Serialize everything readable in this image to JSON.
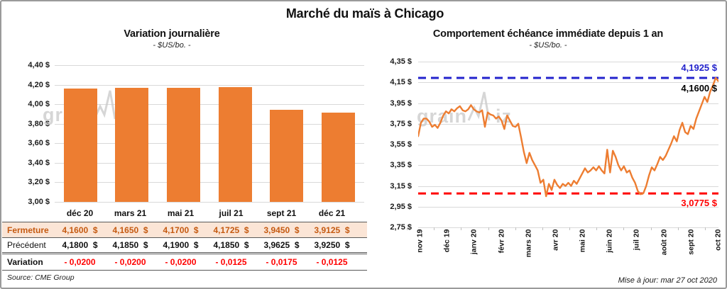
{
  "header": {
    "title": "Marché du maïs à Chicago"
  },
  "footer": {
    "source": "Source: CME Group",
    "updated": "Mise à jour: mar 27 oct 2020"
  },
  "watermark": {
    "part1": "grain",
    "part2": "iz"
  },
  "colors": {
    "bar": "#ED7D31",
    "line": "#ED7D31",
    "grid": "#D9D9D9",
    "ref_high": "#2222CC",
    "ref_low": "#FF0000",
    "fermeture_bg": "#FBE5D6",
    "fermeture_text": "#C55A11",
    "variation_text": "#FF0000"
  },
  "table": {
    "columns": [
      "déc 20",
      "mars 21",
      "mai 21",
      "juil 21",
      "sept 21",
      "déc 21"
    ],
    "rows": [
      {
        "label": "Fermeture",
        "style": "fermeture",
        "values": [
          "4,1600  $",
          "4,1650  $",
          "4,1700  $",
          "4,1725  $",
          "3,9450  $",
          "3,9125  $"
        ]
      },
      {
        "label": "Précédent",
        "style": "precedent",
        "values": [
          "4,1800  $",
          "4,1850  $",
          "4,1900  $",
          "4,1850  $",
          "3,9625  $",
          "3,9250  $"
        ]
      },
      {
        "label": "Variation",
        "style": "variation",
        "values": [
          "- 0,0200",
          "- 0,0200",
          "- 0,0200",
          "- 0,0125",
          "- 0,0175",
          "- 0,0125"
        ]
      }
    ]
  },
  "chart_data": [
    {
      "type": "bar",
      "title": "Variation journalière",
      "subtitle": "- $US/bo. -",
      "categories": [
        "déc 20",
        "mars 21",
        "mai 21",
        "juil 21",
        "sept 21",
        "déc 21"
      ],
      "values": [
        4.16,
        4.165,
        4.17,
        4.1725,
        3.945,
        3.9125
      ],
      "ylim": [
        3.0,
        4.4
      ],
      "yticks": [
        "4,40 $",
        "4,20 $",
        "4,00 $",
        "3,80 $",
        "3,60 $",
        "3,40 $",
        "3,20 $",
        "3,00 $"
      ],
      "grid": true,
      "bar_color": "#ED7D31"
    },
    {
      "type": "line",
      "title": "Comportement échéance immédiate depuis 1 an",
      "subtitle": "- $US/bo. -",
      "x_labels": [
        "nov 19",
        "déc 19",
        "janv 20",
        "févr 20",
        "mars 20",
        "avr 20",
        "mai 20",
        "juin 20",
        "juil 20",
        "août 20",
        "sept 20",
        "oct 20"
      ],
      "ylim": [
        2.75,
        4.35
      ],
      "yticks": [
        "4,35 $",
        "4,15 $",
        "3,95 $",
        "3,75 $",
        "3,55 $",
        "3,35 $",
        "3,15 $",
        "2,95 $",
        "2,75 $"
      ],
      "grid": true,
      "series": [
        {
          "name": "échéance immédiate",
          "color": "#ED7D31",
          "values": [
            3.63,
            3.76,
            3.8,
            3.8,
            3.77,
            3.72,
            3.74,
            3.71,
            3.76,
            3.83,
            3.87,
            3.85,
            3.89,
            3.87,
            3.9,
            3.92,
            3.88,
            3.87,
            3.89,
            3.93,
            3.89,
            3.87,
            3.86,
            3.88,
            3.72,
            3.86,
            3.84,
            3.83,
            3.8,
            3.82,
            3.78,
            3.7,
            3.83,
            3.78,
            3.73,
            3.72,
            3.75,
            3.62,
            3.48,
            3.37,
            3.47,
            3.4,
            3.35,
            3.3,
            3.18,
            3.21,
            3.05,
            3.17,
            3.11,
            3.21,
            3.16,
            3.13,
            3.17,
            3.15,
            3.18,
            3.15,
            3.2,
            3.17,
            3.22,
            3.27,
            3.32,
            3.28,
            3.3,
            3.33,
            3.3,
            3.34,
            3.3,
            3.27,
            3.5,
            3.28,
            3.49,
            3.43,
            3.35,
            3.3,
            3.34,
            3.28,
            3.3,
            3.23,
            3.18,
            3.1,
            3.07,
            3.08,
            3.15,
            3.25,
            3.33,
            3.3,
            3.36,
            3.43,
            3.4,
            3.44,
            3.5,
            3.56,
            3.63,
            3.58,
            3.69,
            3.76,
            3.67,
            3.65,
            3.73,
            3.7,
            3.8,
            3.87,
            3.94,
            4.01,
            3.96,
            4.06,
            4.12,
            4.1925,
            4.16
          ]
        }
      ],
      "ref_lines": [
        {
          "value": 4.1925,
          "label": "4,1925 $",
          "color": "#2222CC"
        },
        {
          "value": 3.0775,
          "label": "3,0775 $",
          "color": "#FF0000"
        }
      ],
      "last_value_label": {
        "value": 4.16,
        "label": "4,1600 $",
        "color": "#000000"
      }
    }
  ]
}
